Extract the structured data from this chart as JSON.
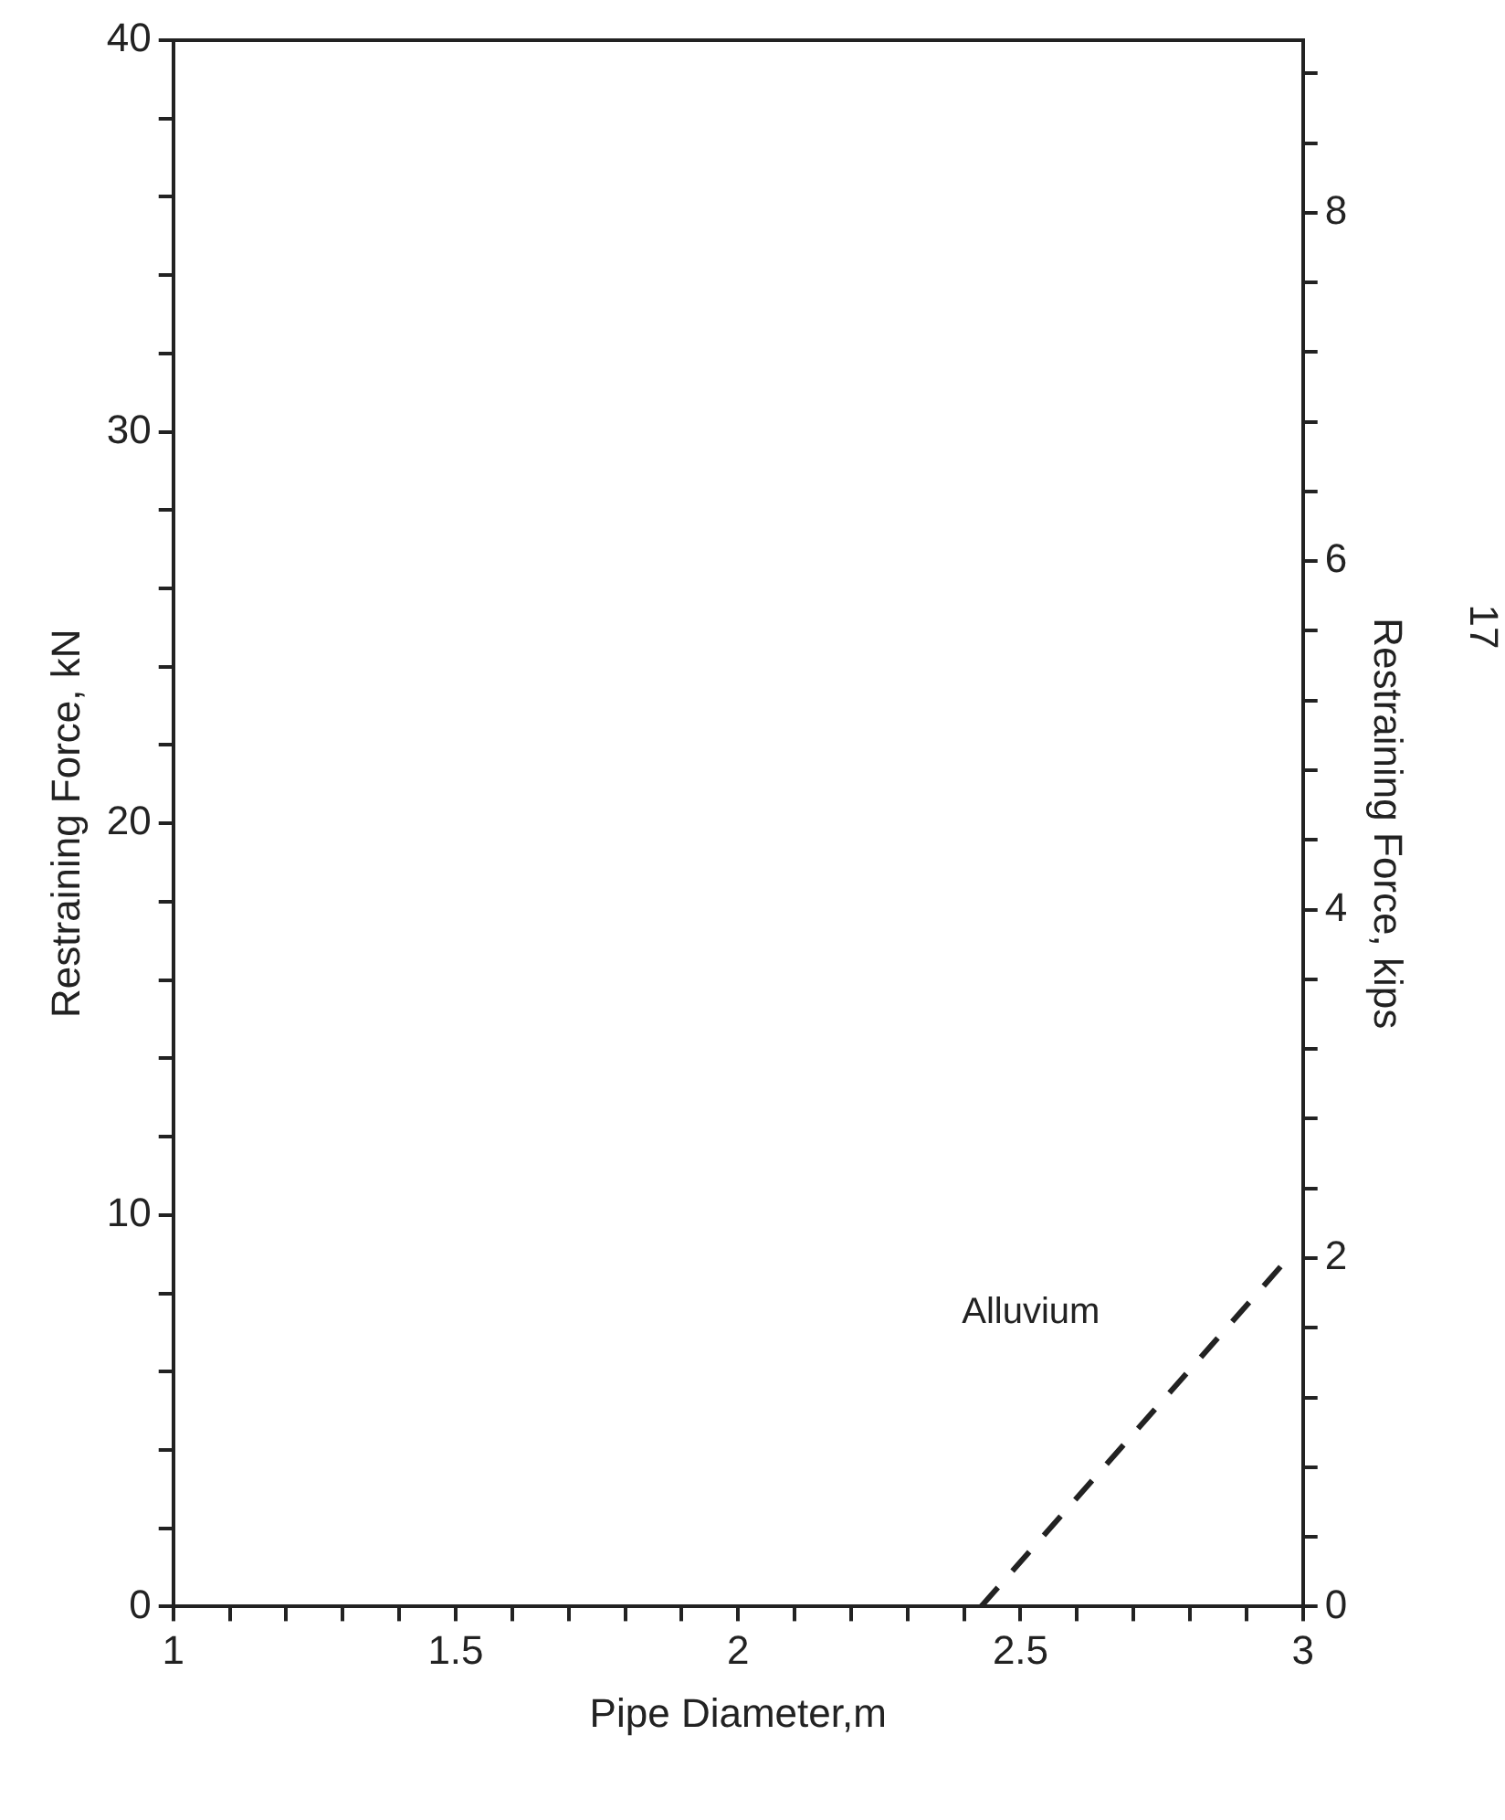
{
  "chart_data": {
    "type": "line",
    "xlabel": "Pipe Diameter,m",
    "ylabel": "Restraining Force, kN",
    "y2label": "Restraining Force, kips",
    "xlim": [
      1,
      3
    ],
    "ylim": [
      0,
      40
    ],
    "y2lim": [
      0,
      8.99
    ],
    "xticks": [
      1,
      {
        "value": 1.1,
        "label": null
      },
      {
        "value": 1.2,
        "label": null
      },
      {
        "value": 1.3,
        "label": null
      },
      {
        "value": 1.4,
        "label": null
      },
      1.5,
      {
        "value": 1.6,
        "label": null
      },
      {
        "value": 1.7,
        "label": null
      },
      {
        "value": 1.8,
        "label": null
      },
      {
        "value": 1.9,
        "label": null
      },
      2,
      {
        "value": 2.1,
        "label": null
      },
      {
        "value": 2.2,
        "label": null
      },
      {
        "value": 2.3,
        "label": null
      },
      {
        "value": 2.4,
        "label": null
      },
      2.5,
      {
        "value": 2.6,
        "label": null
      },
      {
        "value": 2.7,
        "label": null
      },
      {
        "value": 2.8,
        "label": null
      },
      {
        "value": 2.9,
        "label": null
      },
      3
    ],
    "yticks": [
      0,
      {
        "value": 2,
        "label": null
      },
      {
        "value": 4,
        "label": null
      },
      {
        "value": 6,
        "label": null
      },
      {
        "value": 8,
        "label": null
      },
      10,
      {
        "value": 12,
        "label": null
      },
      {
        "value": 14,
        "label": null
      },
      {
        "value": 16,
        "label": null
      },
      {
        "value": 18,
        "label": null
      },
      20,
      {
        "value": 22,
        "label": null
      },
      {
        "value": 24,
        "label": null
      },
      {
        "value": 26,
        "label": null
      },
      {
        "value": 28,
        "label": null
      },
      30,
      {
        "value": 32,
        "label": null
      },
      {
        "value": 34,
        "label": null
      },
      {
        "value": 36,
        "label": null
      },
      {
        "value": 38,
        "label": null
      },
      40
    ],
    "y2ticks": [
      0,
      {
        "value": 0.4,
        "label": null
      },
      {
        "value": 0.8,
        "label": null
      },
      {
        "value": 1.2,
        "label": null
      },
      {
        "value": 1.6,
        "label": null
      },
      2,
      {
        "value": 2.4,
        "label": null
      },
      {
        "value": 2.8,
        "label": null
      },
      {
        "value": 3.2,
        "label": null
      },
      {
        "value": 3.6,
        "label": null
      },
      4,
      {
        "value": 4.4,
        "label": null
      },
      {
        "value": 4.8,
        "label": null
      },
      {
        "value": 5.2,
        "label": null
      },
      {
        "value": 5.6,
        "label": null
      },
      6,
      {
        "value": 6.4,
        "label": null
      },
      {
        "value": 6.8,
        "label": null
      },
      {
        "value": 7.2,
        "label": null
      },
      {
        "value": 7.6,
        "label": null
      },
      8,
      {
        "value": 8.4,
        "label": null
      },
      {
        "value": 8.8,
        "label": null
      }
    ],
    "series": [
      {
        "name": "Alluvium",
        "x": [
          2.43,
          2.98
        ],
        "values": [
          0,
          9
        ],
        "color": "#222222"
      }
    ],
    "marker": "none",
    "line_style": "dashed",
    "grid": false,
    "legend": false,
    "annotations": [
      "17"
    ]
  }
}
